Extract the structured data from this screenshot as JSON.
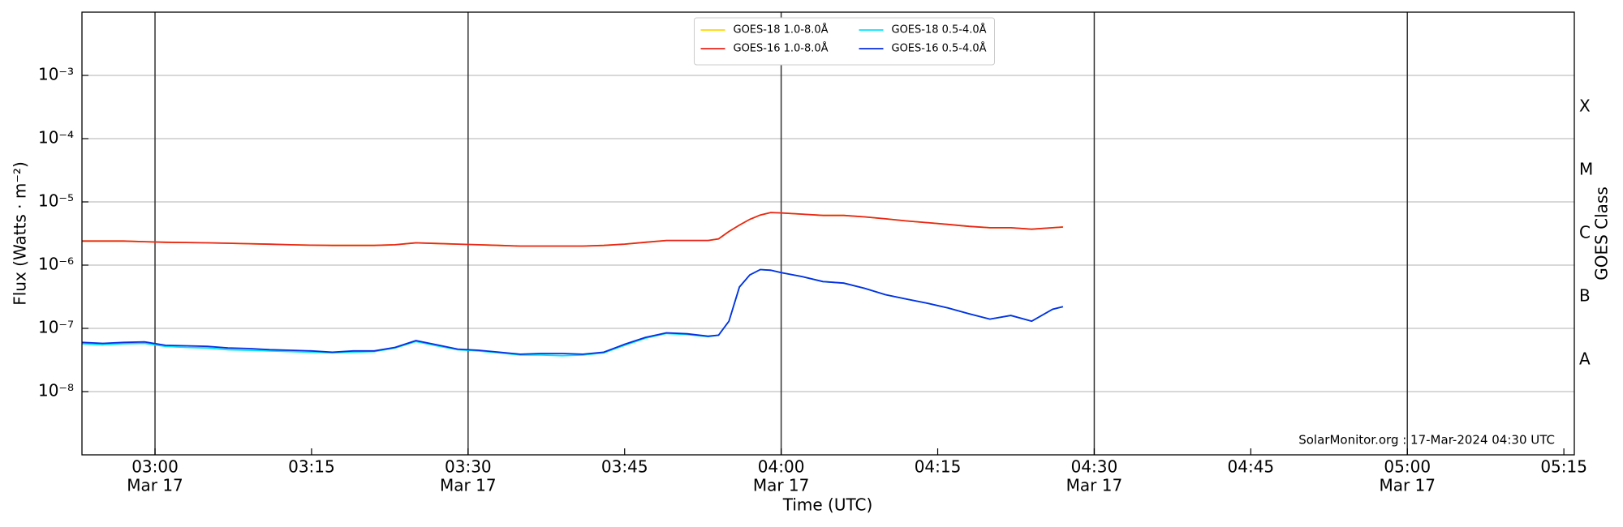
{
  "chart_data": {
    "type": "line",
    "xlabel": "Time (UTC)",
    "ylabel": "Flux (Watts · m⁻²)",
    "y2label": "GOES Class",
    "annotation": "SolarMonitor.org : 17-Mar-2024 04:30 UTC",
    "yscale": "log",
    "grid": true,
    "legend": "upper center",
    "xlim": [
      "02:53",
      "05:16"
    ],
    "ylim": [
      1e-09,
      0.01
    ],
    "yticks": [
      {
        "value": 1e-08,
        "label": "10⁻⁸"
      },
      {
        "value": 1e-07,
        "label": "10⁻⁷"
      },
      {
        "value": 1e-06,
        "label": "10⁻⁶"
      },
      {
        "value": 1e-05,
        "label": "10⁻⁵"
      },
      {
        "value": 0.0001,
        "label": "10⁻⁴"
      },
      {
        "value": 0.001,
        "label": "10⁻³"
      }
    ],
    "y2ticks": [
      {
        "value": 3.16e-08,
        "label": "A"
      },
      {
        "value": 3.16e-07,
        "label": "B"
      },
      {
        "value": 3.16e-06,
        "label": "C"
      },
      {
        "value": 3.16e-05,
        "label": "M"
      },
      {
        "value": 0.000316,
        "label": "X"
      }
    ],
    "xticks": [
      {
        "value": "03:00",
        "label": "03:00",
        "sublabel": "Mar 17"
      },
      {
        "value": "03:15",
        "label": "03:15"
      },
      {
        "value": "03:30",
        "label": "03:30",
        "sublabel": "Mar 17"
      },
      {
        "value": "03:45",
        "label": "03:45"
      },
      {
        "value": "04:00",
        "label": "04:00",
        "sublabel": "Mar 17"
      },
      {
        "value": "04:15",
        "label": "04:15"
      },
      {
        "value": "04:30",
        "label": "04:30",
        "sublabel": "Mar 17"
      },
      {
        "value": "04:45",
        "label": "04:45"
      },
      {
        "value": "05:00",
        "label": "05:00",
        "sublabel": "Mar 17"
      },
      {
        "value": "05:15",
        "label": "05:15"
      }
    ],
    "vlines": [
      "03:00",
      "03:30",
      "04:00",
      "04:30",
      "05:00"
    ],
    "x": [
      "02:53",
      "02:55",
      "02:57",
      "02:59",
      "03:01",
      "03:03",
      "03:05",
      "03:07",
      "03:09",
      "03:11",
      "03:13",
      "03:15",
      "03:17",
      "03:19",
      "03:21",
      "03:23",
      "03:25",
      "03:27",
      "03:29",
      "03:31",
      "03:33",
      "03:35",
      "03:37",
      "03:39",
      "03:41",
      "03:43",
      "03:45",
      "03:47",
      "03:49",
      "03:51",
      "03:53",
      "03:54",
      "03:55",
      "03:56",
      "03:57",
      "03:58",
      "03:59",
      "04:00",
      "04:02",
      "04:04",
      "04:06",
      "04:08",
      "04:10",
      "04:12",
      "04:14",
      "04:16",
      "04:18",
      "04:20",
      "04:22",
      "04:24",
      "04:26",
      "04:27"
    ],
    "series": [
      {
        "name": "GOES-18 1.0-8.0Å",
        "color": "#ffd700",
        "values": [
          2.4e-06,
          2.4e-06,
          2.4e-06,
          2.35e-06,
          2.3e-06,
          2.28e-06,
          2.25e-06,
          2.22e-06,
          2.18e-06,
          2.14e-06,
          2.1e-06,
          2.07e-06,
          2.05e-06,
          2.05e-06,
          2.05e-06,
          2.1e-06,
          2.25e-06,
          2.2e-06,
          2.15e-06,
          2.1e-06,
          2.05e-06,
          2e-06,
          2e-06,
          2e-06,
          2e-06,
          2.05e-06,
          2.15e-06,
          2.3e-06,
          2.45e-06,
          2.45e-06,
          2.45e-06,
          2.6e-06,
          3.4e-06,
          4.3e-06,
          5.3e-06,
          6.2e-06,
          6.8e-06,
          6.7e-06,
          6.4e-06,
          6.1e-06,
          6.1e-06,
          5.8e-06,
          5.4e-06,
          5e-06,
          4.7e-06,
          4.4e-06,
          4.1e-06,
          3.9e-06,
          3.9e-06,
          3.7e-06,
          3.9e-06,
          4e-06
        ]
      },
      {
        "name": "GOES-16 1.0-8.0Å",
        "color": "#e8261c",
        "values": [
          2.4e-06,
          2.4e-06,
          2.4e-06,
          2.35e-06,
          2.3e-06,
          2.28e-06,
          2.25e-06,
          2.22e-06,
          2.18e-06,
          2.14e-06,
          2.1e-06,
          2.07e-06,
          2.05e-06,
          2.05e-06,
          2.05e-06,
          2.1e-06,
          2.25e-06,
          2.2e-06,
          2.15e-06,
          2.1e-06,
          2.05e-06,
          2e-06,
          2e-06,
          2e-06,
          2e-06,
          2.05e-06,
          2.15e-06,
          2.3e-06,
          2.45e-06,
          2.45e-06,
          2.45e-06,
          2.6e-06,
          3.4e-06,
          4.3e-06,
          5.3e-06,
          6.2e-06,
          6.8e-06,
          6.7e-06,
          6.4e-06,
          6.1e-06,
          6.1e-06,
          5.8e-06,
          5.4e-06,
          5e-06,
          4.7e-06,
          4.4e-06,
          4.1e-06,
          3.9e-06,
          3.9e-06,
          3.7e-06,
          3.9e-06,
          4e-06
        ]
      },
      {
        "name": "GOES-18 0.5-4.0Å",
        "color": "#00e5ff",
        "values": [
          5.7e-08,
          5.5e-08,
          5.7e-08,
          5.8e-08,
          5.2e-08,
          5e-08,
          4.9e-08,
          4.6e-08,
          4.5e-08,
          4.4e-08,
          4.3e-08,
          4.2e-08,
          4.1e-08,
          4.2e-08,
          4.3e-08,
          4.9e-08,
          6.2e-08,
          5.3e-08,
          4.6e-08,
          4.4e-08,
          4.1e-08,
          3.8e-08,
          3.8e-08,
          3.7e-08,
          3.8e-08,
          4.1e-08,
          5.4e-08,
          7e-08,
          8.3e-08,
          8e-08,
          7.4e-08,
          7.8e-08,
          1.3e-07,
          4.5e-07,
          7e-07,
          8.5e-07,
          8.3e-07,
          7.6e-07,
          6.6e-07,
          5.5e-07,
          5.2e-07,
          4.3e-07,
          3.4e-07,
          2.9e-07,
          2.5e-07,
          2.1e-07,
          1.7e-07,
          1.4e-07,
          1.6e-07,
          1.3e-07,
          2e-07,
          2.2e-07
        ]
      },
      {
        "name": "GOES-16 0.5-4.0Å",
        "color": "#0a2ee0",
        "values": [
          6e-08,
          5.8e-08,
          6e-08,
          6.1e-08,
          5.4e-08,
          5.3e-08,
          5.2e-08,
          4.9e-08,
          4.8e-08,
          4.6e-08,
          4.5e-08,
          4.4e-08,
          4.2e-08,
          4.4e-08,
          4.4e-08,
          5e-08,
          6.4e-08,
          5.5e-08,
          4.7e-08,
          4.5e-08,
          4.2e-08,
          3.9e-08,
          4e-08,
          4e-08,
          3.9e-08,
          4.2e-08,
          5.6e-08,
          7.2e-08,
          8.5e-08,
          8.2e-08,
          7.5e-08,
          7.8e-08,
          1.3e-07,
          4.5e-07,
          7e-07,
          8.5e-07,
          8.3e-07,
          7.6e-07,
          6.6e-07,
          5.5e-07,
          5.2e-07,
          4.3e-07,
          3.4e-07,
          2.9e-07,
          2.5e-07,
          2.1e-07,
          1.7e-07,
          1.4e-07,
          1.6e-07,
          1.3e-07,
          2e-07,
          2.2e-07
        ]
      }
    ]
  }
}
